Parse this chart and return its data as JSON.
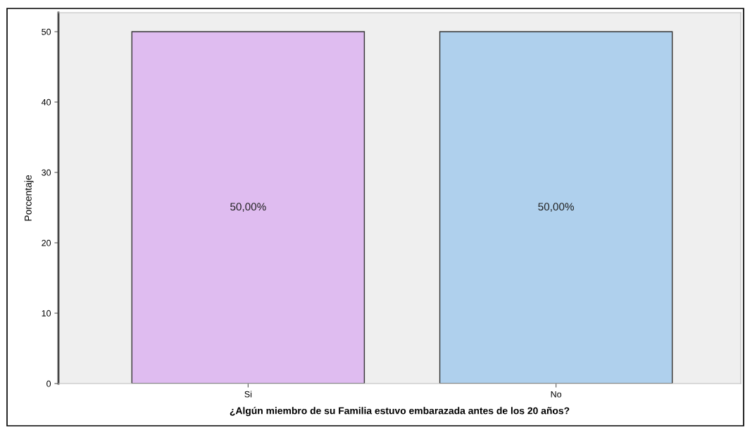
{
  "chart_data": {
    "type": "bar",
    "xlabel": "¿Algún miembro de su Familia estuvo embarazada antes de los 20 años?",
    "ylabel": "Porcentaje",
    "categories": [
      "Si",
      "No"
    ],
    "values": [
      50,
      50
    ],
    "colors": [
      "#dfbcf0",
      "#afd0ed"
    ],
    "value_labels": [
      "50,00%",
      "50,00%"
    ],
    "ylim": [
      0,
      52.7
    ],
    "yticks": [
      0,
      10,
      20,
      30,
      40,
      50
    ],
    "grid": false,
    "legend": false
  }
}
